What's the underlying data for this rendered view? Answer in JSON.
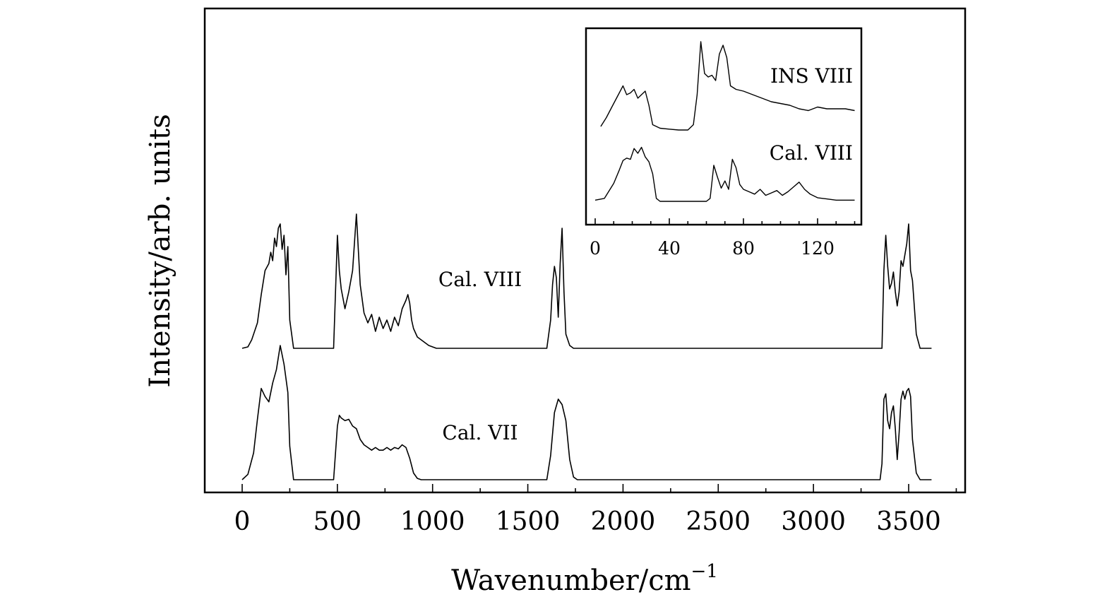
{
  "chart_data": [
    {
      "type": "line",
      "xlabel": "Wavenumber/cm",
      "xlabel_superscript": "−1",
      "ylabel": "Intensity/arb. units",
      "xlim": [
        -200,
        3800
      ],
      "xticks": [
        0,
        500,
        1000,
        1500,
        2000,
        2500,
        3000,
        3500
      ],
      "xtick_labels": [
        "0",
        "500",
        "1000",
        "1500",
        "2000",
        "2500",
        "3000",
        "3500"
      ],
      "y_tick_labels": "none",
      "grid": false,
      "series": [
        {
          "name": "Cal. VIII",
          "label_position": "center",
          "x": [
            0,
            30,
            50,
            80,
            100,
            120,
            140,
            150,
            160,
            170,
            180,
            190,
            200,
            210,
            220,
            230,
            240,
            250,
            270,
            480,
            500,
            510,
            520,
            540,
            560,
            580,
            600,
            620,
            640,
            660,
            680,
            700,
            720,
            740,
            760,
            780,
            800,
            820,
            840,
            860,
            870,
            880,
            890,
            900,
            920,
            940,
            960,
            980,
            1000,
            1020,
            1040,
            1600,
            1620,
            1630,
            1640,
            1650,
            1660,
            1670,
            1680,
            1690,
            1700,
            1720,
            1740,
            1760,
            3360,
            3370,
            3380,
            3390,
            3400,
            3410,
            3420,
            3430,
            3440,
            3450,
            3460,
            3470,
            3480,
            3490,
            3500,
            3510,
            3520,
            3540,
            3560,
            3620
          ],
          "y": [
            0.0,
            0.01,
            0.06,
            0.18,
            0.38,
            0.55,
            0.6,
            0.68,
            0.62,
            0.78,
            0.72,
            0.85,
            0.88,
            0.7,
            0.8,
            0.52,
            0.72,
            0.2,
            0.0,
            0.0,
            0.8,
            0.55,
            0.42,
            0.28,
            0.4,
            0.55,
            0.95,
            0.45,
            0.25,
            0.18,
            0.24,
            0.12,
            0.22,
            0.14,
            0.2,
            0.12,
            0.22,
            0.16,
            0.28,
            0.34,
            0.38,
            0.32,
            0.2,
            0.14,
            0.08,
            0.06,
            0.04,
            0.02,
            0.01,
            0.0,
            0.0,
            0.0,
            0.2,
            0.45,
            0.58,
            0.5,
            0.22,
            0.6,
            0.85,
            0.4,
            0.1,
            0.02,
            0.0,
            0.0,
            0.0,
            0.55,
            0.8,
            0.58,
            0.42,
            0.46,
            0.54,
            0.4,
            0.3,
            0.4,
            0.62,
            0.58,
            0.66,
            0.74,
            0.88,
            0.55,
            0.48,
            0.1,
            0.0,
            0.0
          ]
        },
        {
          "name": "Cal. VII",
          "label_position": "center",
          "x": [
            0,
            30,
            60,
            80,
            100,
            120,
            140,
            160,
            180,
            200,
            220,
            240,
            250,
            270,
            480,
            500,
            510,
            520,
            540,
            560,
            580,
            600,
            620,
            640,
            660,
            680,
            700,
            720,
            740,
            760,
            780,
            800,
            820,
            840,
            860,
            880,
            900,
            920,
            940,
            1600,
            1620,
            1640,
            1660,
            1680,
            1700,
            1720,
            1740,
            1760,
            3350,
            3360,
            3370,
            3380,
            3390,
            3400,
            3410,
            3420,
            3430,
            3440,
            3450,
            3460,
            3470,
            3480,
            3490,
            3500,
            3510,
            3520,
            3540,
            3560,
            3620
          ],
          "y": [
            0.0,
            0.04,
            0.2,
            0.45,
            0.68,
            0.62,
            0.58,
            0.72,
            0.82,
            1.0,
            0.86,
            0.65,
            0.25,
            0.0,
            0.0,
            0.4,
            0.48,
            0.46,
            0.44,
            0.45,
            0.4,
            0.38,
            0.3,
            0.26,
            0.24,
            0.22,
            0.24,
            0.22,
            0.22,
            0.24,
            0.22,
            0.24,
            0.23,
            0.26,
            0.24,
            0.16,
            0.05,
            0.01,
            0.0,
            0.0,
            0.18,
            0.5,
            0.6,
            0.56,
            0.44,
            0.15,
            0.02,
            0.0,
            0.0,
            0.12,
            0.6,
            0.64,
            0.44,
            0.38,
            0.5,
            0.55,
            0.38,
            0.15,
            0.35,
            0.6,
            0.66,
            0.6,
            0.66,
            0.68,
            0.62,
            0.3,
            0.05,
            0.0,
            0.0
          ]
        }
      ]
    },
    {
      "type": "line",
      "inset": true,
      "xlim": [
        -4,
        146
      ],
      "xticks": [
        0,
        40,
        80,
        120
      ],
      "xtick_labels": [
        "0",
        "40",
        "80",
        "120"
      ],
      "grid": false,
      "series": [
        {
          "name": "INS VIII",
          "label_position": "top-right",
          "x": [
            3,
            6,
            9,
            12,
            15,
            17,
            19,
            21,
            23,
            25,
            27,
            29,
            31,
            35,
            40,
            45,
            50,
            53,
            55,
            57,
            59,
            61,
            63,
            65,
            67,
            69,
            71,
            73,
            76,
            80,
            85,
            90,
            95,
            100,
            105,
            110,
            115,
            120,
            125,
            130,
            135,
            140
          ],
          "y": [
            0.04,
            0.14,
            0.26,
            0.38,
            0.5,
            0.4,
            0.42,
            0.46,
            0.36,
            0.4,
            0.44,
            0.28,
            0.06,
            0.02,
            0.01,
            0.0,
            0.0,
            0.06,
            0.4,
            1.0,
            0.64,
            0.6,
            0.62,
            0.56,
            0.86,
            0.96,
            0.82,
            0.5,
            0.46,
            0.44,
            0.4,
            0.36,
            0.32,
            0.3,
            0.28,
            0.24,
            0.22,
            0.26,
            0.24,
            0.24,
            0.24,
            0.22
          ]
        },
        {
          "name": "Cal. VIII",
          "label_position": "right",
          "x": [
            0,
            5,
            10,
            13,
            15,
            17,
            19,
            21,
            23,
            25,
            27,
            29,
            31,
            33,
            35,
            55,
            60,
            62,
            64,
            66,
            68,
            70,
            72,
            74,
            76,
            78,
            80,
            83,
            86,
            89,
            92,
            95,
            98,
            101,
            104,
            107,
            110,
            113,
            116,
            120,
            125,
            130,
            140
          ],
          "y": [
            0.02,
            0.05,
            0.3,
            0.52,
            0.68,
            0.72,
            0.7,
            0.88,
            0.8,
            0.9,
            0.74,
            0.66,
            0.46,
            0.05,
            0.0,
            0.0,
            0.0,
            0.05,
            0.6,
            0.4,
            0.22,
            0.34,
            0.2,
            0.7,
            0.56,
            0.28,
            0.2,
            0.16,
            0.12,
            0.2,
            0.1,
            0.14,
            0.18,
            0.1,
            0.16,
            0.24,
            0.32,
            0.2,
            0.12,
            0.06,
            0.04,
            0.02,
            0.02
          ]
        }
      ]
    }
  ]
}
